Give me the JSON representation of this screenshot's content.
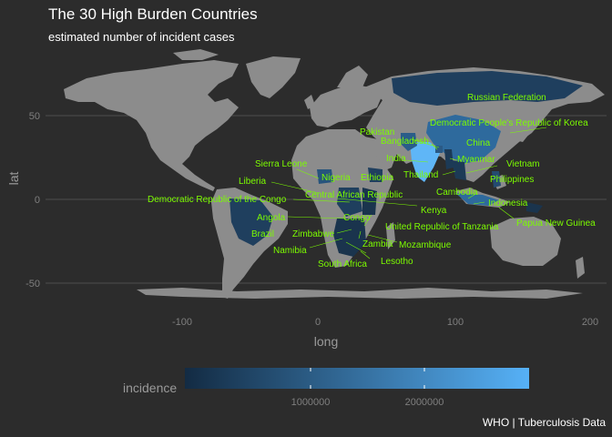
{
  "title": "The 30 High Burden Countries",
  "subtitle": "estimated number of incident cases",
  "caption": "WHO | Tuberculosis Data",
  "axes": {
    "x_title": "long",
    "y_title": "lat",
    "x_ticks": [
      "-100",
      "0",
      "100",
      "200"
    ],
    "y_ticks": [
      "50",
      "0",
      "-50"
    ]
  },
  "legend": {
    "title": "incidence",
    "ticks": [
      "1000000",
      "2000000"
    ],
    "color_low": "#132b43",
    "color_high": "#56b1f7"
  },
  "colors": {
    "background": "#2c2c2c",
    "land": "#8c8c8c",
    "label": "#7cfc00"
  },
  "countries": [
    {
      "name": "Russian Federation"
    },
    {
      "name": "Democratic People's Republic of Korea"
    },
    {
      "name": "Pakistan"
    },
    {
      "name": "Bangladesh"
    },
    {
      "name": "China"
    },
    {
      "name": "India"
    },
    {
      "name": "Myanmar"
    },
    {
      "name": "Vietnam"
    },
    {
      "name": "Sierra Leone"
    },
    {
      "name": "Thailand"
    },
    {
      "name": "Philippines"
    },
    {
      "name": "Nigeria"
    },
    {
      "name": "Ethiopia"
    },
    {
      "name": "Liberia"
    },
    {
      "name": "Cambodia"
    },
    {
      "name": "Central African Republic"
    },
    {
      "name": "Democratic Republic of the Congo"
    },
    {
      "name": "Indonesia"
    },
    {
      "name": "Kenya"
    },
    {
      "name": "Angola"
    },
    {
      "name": "Congo"
    },
    {
      "name": "Papua New Guinea"
    },
    {
      "name": "United Republic of Tanzania"
    },
    {
      "name": "Brazil"
    },
    {
      "name": "Zimbabwe"
    },
    {
      "name": "Zambia"
    },
    {
      "name": "Mozambique"
    },
    {
      "name": "Namibia"
    },
    {
      "name": "South Africa"
    },
    {
      "name": "Lesotho"
    }
  ]
}
